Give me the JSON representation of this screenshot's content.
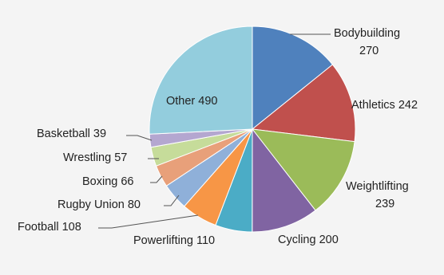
{
  "chart_data": {
    "type": "pie",
    "categories": [
      "Bodybuilding",
      "Athletics",
      "Weightlifting",
      "Cycling",
      "Powerlifting",
      "Football",
      "Rugby Union",
      "Boxing",
      "Wrestling",
      "Basketball",
      "Other"
    ],
    "values": [
      270,
      242,
      239,
      200,
      110,
      108,
      80,
      66,
      57,
      39,
      490
    ],
    "colors": [
      "#4f81bd",
      "#c0504d",
      "#9bbb59",
      "#8064a2",
      "#4bacc6",
      "#f79646",
      "#8fb0d9",
      "#e8a07a",
      "#c6dc9a",
      "#b4a7d0",
      "#93cddd"
    ],
    "labels": [
      {
        "text": "Bodybuilding",
        "value": "270"
      },
      {
        "text": "Athletics",
        "value": "242"
      },
      {
        "text": "Weightlifting",
        "value": "239"
      },
      {
        "text": "Cycling",
        "value": "200"
      },
      {
        "text": "Powerlifting",
        "value": "110"
      },
      {
        "text": "Football",
        "value": "108"
      },
      {
        "text": "Rugby Union",
        "value": "80"
      },
      {
        "text": "Boxing",
        "value": "66"
      },
      {
        "text": "Wrestling",
        "value": "57"
      },
      {
        "text": "Basketball",
        "value": "39"
      },
      {
        "text": "Other",
        "value": "490"
      }
    ],
    "start": "12 o'clock",
    "direction": "clockwise",
    "legend": "none"
  }
}
